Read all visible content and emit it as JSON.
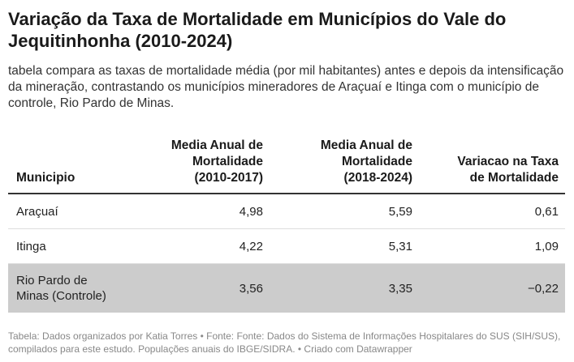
{
  "title": "Variação da Taxa de Mortalidade em Municípios do Vale do Jequitinhonha (2010-2024)",
  "subtitle": "tabela compara as taxas de mortalidade média (por mil habitantes) antes e depois da intensificação da mineração, contrastando os municípios mineradores de Araçuaí e Itinga com o município de controle, Rio Pardo de Minas.",
  "footer": "Tabela: Dados organizados por Katia Torres • Fonte: Fonte: Dados do Sistema de Informações Hospitalares do SUS (SIH/SUS), compilados para este estudo. Populações anuais do IBGE/SIDRA. • Criado com Datawrapper",
  "colors": {
    "highlight_row": "#cccccc",
    "header_rule": "#333333",
    "row_rule": "#dddddd"
  },
  "chart_data": {
    "type": "table",
    "columns": [
      [
        "Municipio"
      ],
      [
        "Media Anual de",
        "Mortalidade",
        "(2010-2017)"
      ],
      [
        "Media Anual de",
        "Mortalidade",
        "(2018-2024)"
      ],
      [
        "Variacao na Taxa",
        "de Mortalidade"
      ]
    ],
    "rows": [
      {
        "name": [
          "Araçuaí"
        ],
        "v1": "4,98",
        "v2": "5,59",
        "v3": "0,61",
        "highlight": false
      },
      {
        "name": [
          "Itinga"
        ],
        "v1": "4,22",
        "v2": "5,31",
        "v3": "1,09",
        "highlight": false
      },
      {
        "name": [
          "Rio Pardo de",
          "Minas (Controle)"
        ],
        "v1": "3,56",
        "v2": "3,35",
        "v3": "−0,22",
        "highlight": true
      }
    ]
  }
}
